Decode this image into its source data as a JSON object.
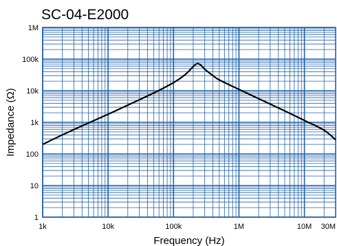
{
  "chart_data": {
    "type": "line",
    "title": "SC-04-E2000",
    "xlabel": "Frequency (Hz)",
    "ylabel": "Impedance (Ω)",
    "xscale": "log",
    "yscale": "log",
    "xlim": [
      1000,
      30000000
    ],
    "ylim": [
      1,
      1000000
    ],
    "xticks": [
      {
        "value": 1000,
        "label": "1k"
      },
      {
        "value": 10000,
        "label": "10k"
      },
      {
        "value": 100000,
        "label": "100k"
      },
      {
        "value": 1000000,
        "label": "1M"
      },
      {
        "value": 10000000,
        "label": "10M"
      },
      {
        "value": 30000000,
        "label": "30M"
      }
    ],
    "yticks": [
      {
        "value": 1,
        "label": "1"
      },
      {
        "value": 10,
        "label": "10"
      },
      {
        "value": 100,
        "label": "100"
      },
      {
        "value": 1000,
        "label": "1k"
      },
      {
        "value": 10000,
        "label": "10k"
      },
      {
        "value": 100000,
        "label": "100k"
      },
      {
        "value": 1000000,
        "label": "1M"
      }
    ],
    "grid": true,
    "grid_color": "#1f5fa8",
    "line_color": "#000000",
    "series": [
      {
        "x": [
          1000,
          2000,
          5000,
          10000,
          20000,
          50000,
          100000,
          150000,
          200000,
          230000,
          260000,
          300000,
          400000,
          500000,
          1000000,
          2000000,
          5000000,
          10000000,
          20000000,
          30000000
        ],
        "y": [
          200,
          400,
          950,
          1800,
          3500,
          8500,
          18000,
          32000,
          58000,
          72000,
          65000,
          48000,
          30000,
          22000,
          11000,
          5600,
          2300,
          1150,
          560,
          280
        ]
      }
    ]
  }
}
